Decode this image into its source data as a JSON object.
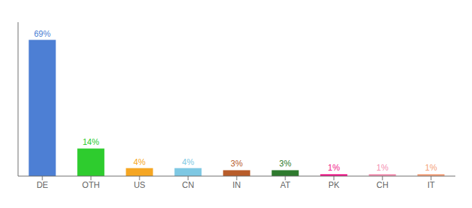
{
  "chart_data": {
    "type": "bar",
    "categories": [
      "DE",
      "OTH",
      "US",
      "CN",
      "IN",
      "AT",
      "PK",
      "CH",
      "IT"
    ],
    "values": [
      69,
      14,
      4,
      4,
      3,
      3,
      1,
      1,
      1
    ],
    "value_labels": [
      "69%",
      "14%",
      "4%",
      "4%",
      "3%",
      "3%",
      "1%",
      "1%",
      "1%"
    ],
    "colors": [
      "#4d7fd4",
      "#2ecc2e",
      "#f5a623",
      "#7ec8e3",
      "#b85c2a",
      "#2d7a2d",
      "#f0198a",
      "#f48fb1",
      "#f4a07a"
    ],
    "ylim": [
      0,
      78
    ],
    "data_labels": true,
    "tick_labels": "x",
    "grid": false
  }
}
